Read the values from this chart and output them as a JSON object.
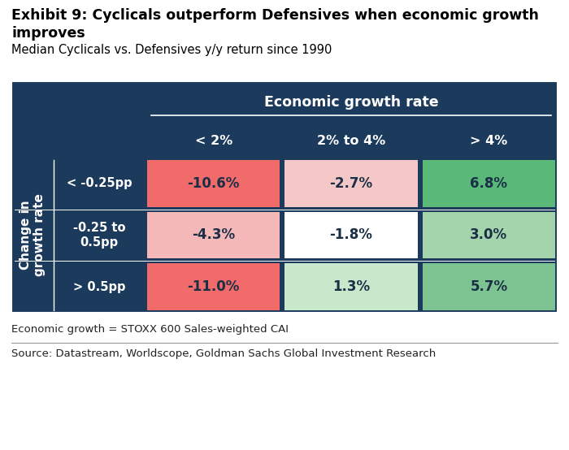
{
  "title_bold": "Exhibit 9: Cyclicals outperform Defensives when economic growth\nimproves",
  "subtitle": "Median Cyclicals vs. Defensives y/y return since 1990",
  "col_header_main": "Economic growth rate",
  "col_headers": [
    "< 2%",
    "2% to 4%",
    "> 4%"
  ],
  "row_header_main": "Change in\ngrowth rate",
  "row_headers": [
    "< -0.25pp",
    "-0.25 to\n0.5pp",
    "> 0.5pp"
  ],
  "values": [
    [
      "-10.6%",
      "-2.7%",
      "6.8%"
    ],
    [
      "-4.3%",
      "-1.8%",
      "3.0%"
    ],
    [
      "-11.0%",
      "1.3%",
      "5.7%"
    ]
  ],
  "cell_colors": [
    [
      "#f26b6b",
      "#f5c8c8",
      "#5ab878"
    ],
    [
      "#f5b8b8",
      "#ffffff",
      "#a3d4ac"
    ],
    [
      "#f26b6b",
      "#c8e8cc",
      "#7dc492"
    ]
  ],
  "cell_text_colors": [
    [
      "#1a1a1a",
      "#1a1a1a",
      "#1a1a1a"
    ],
    [
      "#1a1a1a",
      "#1a1a1a",
      "#1a1a1a"
    ],
    [
      "#1a1a1a",
      "#1a1a1a",
      "#1a1a1a"
    ]
  ],
  "mid_navy": "#1b3a5c",
  "footer_text1": "Economic growth = STOXX 600 Sales-weighted CAI",
  "footer_text2": "Source: Datastream, Worldscope, Goldman Sachs Global Investment Research"
}
